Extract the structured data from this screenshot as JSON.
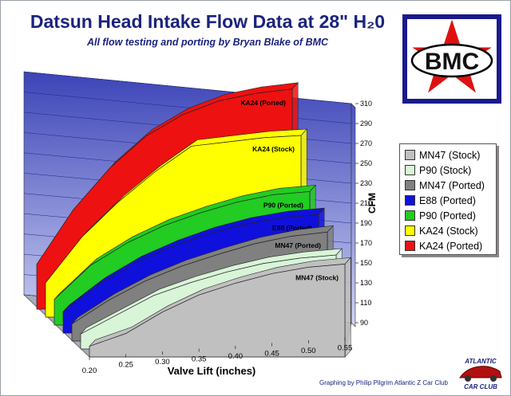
{
  "title": "Datsun Head Intake Flow Data at 28\" H₂0",
  "subtitle": "All flow testing and porting by Bryan Blake of BMC",
  "logo": {
    "text": "BMC",
    "colors": {
      "bg": "#1a1a8c",
      "star": "#ffffff",
      "oval": "#dd1111"
    }
  },
  "club_logo": {
    "top": "ATLANTIC",
    "bottom": "CAR CLUB",
    "icon": "z-car-icon"
  },
  "credit": "Graphing by Philip Pilgrim Atlantic Z Car Club",
  "chart_data": {
    "type": "area",
    "variant": "3d-ribbon",
    "x": [
      0.2,
      0.25,
      0.3,
      0.35,
      0.4,
      0.45,
      0.5,
      0.55
    ],
    "x_tick_labels": [
      "0.20",
      "0.25",
      "0.30",
      "0.35",
      "0.40",
      "0.45",
      "0.50",
      "0.55"
    ],
    "xlabel": "Valve Lift (inches)",
    "ylabel": "CFM",
    "ylim": [
      90,
      310
    ],
    "y_ticks": [
      90,
      110,
      130,
      150,
      170,
      190,
      210,
      230,
      250,
      270,
      290,
      310
    ],
    "legend_position": "right",
    "grid": true,
    "series": [
      {
        "name": "MN47 (Stock)",
        "label": "MN47 (Stock)",
        "color": "#c0c0c0",
        "values": [
          100,
          112,
          132,
          148,
          159,
          168,
          174,
          177
        ]
      },
      {
        "name": "P90 (Stock)",
        "label": "P90 (Stock)",
        "color": "#d8f5d8",
        "values": [
          104,
          122,
          140,
          152,
          162,
          170,
          175,
          178
        ]
      },
      {
        "name": "MN47 (Ported)",
        "label": "MN47 (Ported)",
        "color": "#808080",
        "values": [
          106,
          128,
          146,
          160,
          171,
          181,
          188,
          192
        ]
      },
      {
        "name": "E88 (Ported)",
        "label": "E88 (Ported)",
        "color": "#1010dd",
        "values": [
          110,
          136,
          156,
          171,
          183,
          192,
          198,
          201
        ]
      },
      {
        "name": "P90 (Ported)",
        "label": "P90 (Ported)",
        "color": "#22cc22",
        "values": [
          114,
          146,
          167,
          183,
          195,
          205,
          212,
          215
        ]
      },
      {
        "name": "KA24 (Stock)",
        "label": "KA24 (Stock)",
        "color": "#ffff00",
        "values": [
          122,
          165,
          198,
          226,
          250,
          254,
          258,
          260
        ]
      },
      {
        "name": "KA24 (Ported)",
        "label": "KA24 (Ported)",
        "color": "#ee1111",
        "values": [
          132,
          183,
          222,
          252,
          272,
          285,
          292,
          296
        ]
      }
    ]
  }
}
